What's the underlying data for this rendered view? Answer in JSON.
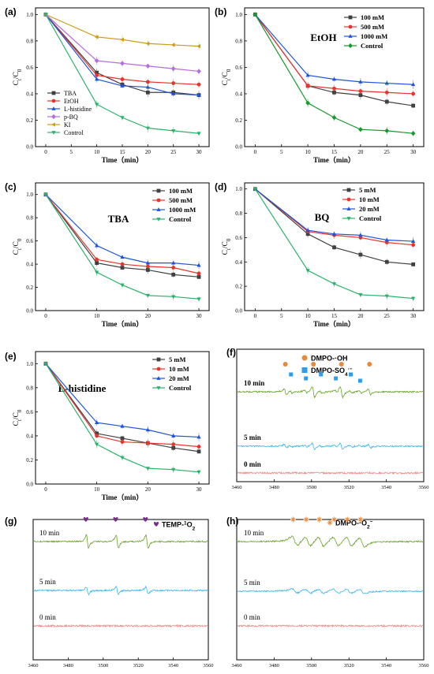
{
  "chart_data": [
    {
      "type": "line",
      "panel": "(a)",
      "title": "",
      "xlabel": "Time（min）",
      "ylabel": "C",
      "ylabel_sub1": "t",
      "ylabel_mid": "/C",
      "ylabel_sub2": "0",
      "xlim": [
        -2,
        32
      ],
      "ylim": [
        0,
        1.05
      ],
      "xticks": [
        0,
        5,
        10,
        15,
        20,
        25,
        30
      ],
      "yticks": [
        0.0,
        0.2,
        0.4,
        0.6,
        0.8,
        1.0
      ],
      "ytick_labels": [
        "0.0",
        "0.2",
        "0.4",
        "0.6",
        "0.8",
        "1.0"
      ],
      "legend_position": "bottom-left",
      "legend_style": "normal",
      "x": [
        0,
        10,
        15,
        20,
        25,
        30
      ],
      "series": [
        {
          "name": "TBA",
          "values": [
            1.0,
            0.56,
            0.47,
            0.41,
            0.41,
            0.39
          ],
          "color": "#404040",
          "marker": "square"
        },
        {
          "name": "EtOH",
          "values": [
            1.0,
            0.54,
            0.51,
            0.49,
            0.48,
            0.47
          ],
          "color": "#e8342a",
          "marker": "circle"
        },
        {
          "name": "L-histidine",
          "values": [
            1.0,
            0.51,
            0.46,
            0.45,
            0.4,
            0.39
          ],
          "color": "#1d55d6",
          "marker": "triangle"
        },
        {
          "name": "p-BQ",
          "values": [
            1.0,
            0.65,
            0.63,
            0.61,
            0.59,
            0.57
          ],
          "color": "#b76ce0",
          "marker": "diamond"
        },
        {
          "name": "KI",
          "values": [
            1.0,
            0.83,
            0.81,
            0.78,
            0.77,
            0.76
          ],
          "color": "#cf9a16",
          "marker": "triangle-left"
        },
        {
          "name": "Control",
          "values": [
            1.0,
            0.32,
            0.22,
            0.14,
            0.12,
            0.1
          ],
          "color": "#2bb36b",
          "marker": "triangle-down"
        }
      ]
    },
    {
      "type": "line",
      "panel": "(b)",
      "title": "EtOH",
      "xlabel": "Time（min）",
      "ylabel": "C",
      "ylabel_sub1": "t",
      "ylabel_mid": "/C",
      "ylabel_sub2": "0",
      "xlim": [
        -2,
        32
      ],
      "ylim": [
        0,
        1.05
      ],
      "xticks": [
        0,
        5,
        10,
        15,
        20,
        25,
        30
      ],
      "yticks": [
        0.0,
        0.2,
        0.4,
        0.6,
        0.8,
        1.0
      ],
      "ytick_labels": [
        "0.0",
        "0.2",
        "0.4",
        "0.6",
        "0.8",
        "1.0"
      ],
      "legend_position": "top-right",
      "legend_style": "bold",
      "x": [
        0,
        10,
        15,
        20,
        25,
        30
      ],
      "series": [
        {
          "name": "100 mM",
          "values": [
            1.0,
            0.46,
            0.41,
            0.39,
            0.34,
            0.31
          ],
          "color": "#404040",
          "marker": "square"
        },
        {
          "name": "500 mM",
          "values": [
            1.0,
            0.46,
            0.44,
            0.42,
            0.41,
            0.4
          ],
          "color": "#e8342a",
          "marker": "circle"
        },
        {
          "name": "1000 mM",
          "values": [
            1.0,
            0.54,
            0.51,
            0.49,
            0.48,
            0.47
          ],
          "color": "#1d55d6",
          "marker": "triangle"
        },
        {
          "name": "Control",
          "values": [
            1.0,
            0.33,
            0.22,
            0.13,
            0.12,
            0.1
          ],
          "color": "#169a2d",
          "marker": "diamond"
        }
      ]
    },
    {
      "type": "line",
      "panel": "(c)",
      "title": "TBA",
      "xlabel": "Time（min）",
      "ylabel": "C",
      "ylabel_sub1": "t",
      "ylabel_mid": "/C",
      "ylabel_sub2": "0",
      "xlim": [
        -2,
        32
      ],
      "ylim": [
        0,
        1.1
      ],
      "xticks": [
        0,
        10,
        20,
        30
      ],
      "yticks": [
        0.0,
        0.2,
        0.4,
        0.6,
        0.8,
        1.0
      ],
      "ytick_labels": [
        "0.0",
        "0.2",
        "0.4",
        "0.6",
        "0.8",
        "1.0"
      ],
      "legend_position": "top-right",
      "legend_style": "bold",
      "x": [
        0,
        10,
        15,
        20,
        25,
        30
      ],
      "series": [
        {
          "name": "100 mM",
          "values": [
            1.0,
            0.41,
            0.37,
            0.35,
            0.31,
            0.29
          ],
          "color": "#404040",
          "marker": "square"
        },
        {
          "name": "500 mM",
          "values": [
            1.0,
            0.44,
            0.4,
            0.38,
            0.37,
            0.32
          ],
          "color": "#e8342a",
          "marker": "circle"
        },
        {
          "name": "1000 mM",
          "values": [
            1.0,
            0.56,
            0.46,
            0.41,
            0.41,
            0.39
          ],
          "color": "#1d55d6",
          "marker": "triangle"
        },
        {
          "name": "Control",
          "values": [
            1.0,
            0.33,
            0.22,
            0.13,
            0.12,
            0.1
          ],
          "color": "#2bb36b",
          "marker": "triangle-down"
        }
      ]
    },
    {
      "type": "line",
      "panel": "(d)",
      "title": "BQ",
      "xlabel": "Time（min）",
      "ylabel": "C",
      "ylabel_sub1": "t",
      "ylabel_mid": "/C",
      "ylabel_sub2": "0",
      "xlim": [
        -2,
        32
      ],
      "ylim": [
        0,
        1.05
      ],
      "xticks": [
        0,
        5,
        10,
        15,
        20,
        25,
        30
      ],
      "yticks": [
        0.0,
        0.2,
        0.4,
        0.6,
        0.8,
        1.0
      ],
      "ytick_labels": [
        "0.0",
        "0.2",
        "0.4",
        "0.6",
        "0.8",
        "1.0"
      ],
      "legend_position": "top-right",
      "legend_style": "bold",
      "x": [
        0,
        10,
        15,
        20,
        25,
        30
      ],
      "series": [
        {
          "name": "5 mM",
          "values": [
            1.0,
            0.63,
            0.52,
            0.46,
            0.4,
            0.38
          ],
          "color": "#404040",
          "marker": "square"
        },
        {
          "name": "10 mM",
          "values": [
            1.0,
            0.65,
            0.62,
            0.6,
            0.56,
            0.54
          ],
          "color": "#e8342a",
          "marker": "circle"
        },
        {
          "name": "20 mM",
          "values": [
            1.0,
            0.66,
            0.63,
            0.62,
            0.58,
            0.57
          ],
          "color": "#1d55d6",
          "marker": "triangle"
        },
        {
          "name": "Control",
          "values": [
            1.0,
            0.33,
            0.22,
            0.13,
            0.12,
            0.1
          ],
          "color": "#2bb36b",
          "marker": "triangle-down"
        }
      ]
    },
    {
      "type": "line",
      "panel": "(e)",
      "title": "L-histidine",
      "xlabel": "Time（min）",
      "ylabel": "C",
      "ylabel_sub1": "t",
      "ylabel_mid": "/C",
      "ylabel_sub2": "0",
      "xlim": [
        -2,
        32
      ],
      "ylim": [
        0,
        1.1
      ],
      "xticks": [
        0,
        10,
        20,
        30
      ],
      "yticks": [
        0.0,
        0.2,
        0.4,
        0.6,
        0.8,
        1.0
      ],
      "ytick_labels": [
        "0.0",
        "0.2",
        "0.4",
        "0.6",
        "0.8",
        "1.0"
      ],
      "legend_position": "top-right",
      "legend_style": "bold",
      "x": [
        0,
        10,
        15,
        20,
        25,
        30
      ],
      "series": [
        {
          "name": "5 mM",
          "values": [
            1.0,
            0.42,
            0.38,
            0.34,
            0.3,
            0.27
          ],
          "color": "#404040",
          "marker": "square"
        },
        {
          "name": "10 mM",
          "values": [
            1.0,
            0.4,
            0.35,
            0.34,
            0.33,
            0.31
          ],
          "color": "#e8342a",
          "marker": "circle"
        },
        {
          "name": "20 mM",
          "values": [
            1.0,
            0.51,
            0.48,
            0.45,
            0.4,
            0.39
          ],
          "color": "#1d55d6",
          "marker": "triangle"
        },
        {
          "name": "Control",
          "values": [
            1.0,
            0.33,
            0.22,
            0.13,
            0.12,
            0.1
          ],
          "color": "#2bb36b",
          "marker": "triangle-down"
        }
      ]
    },
    {
      "type": "line",
      "panel": "(f)",
      "title": "",
      "xlim": [
        3460,
        3560
      ],
      "xticks": [
        3460,
        3480,
        3500,
        3520,
        3540,
        3560
      ],
      "legend": [
        {
          "name": "DMPO-·OH",
          "color": "#e8893a",
          "marker": "circle"
        },
        {
          "name": "DMPO-SO",
          "sub": "4",
          "sup": "·−",
          "color": "#2d9bf0",
          "marker": "square"
        }
      ],
      "spectra": [
        {
          "name": "10 min",
          "color": "#6aa42a",
          "pattern": "oh-so4",
          "amplitude": 1.0
        },
        {
          "name": "5 min",
          "color": "#3fb8ec",
          "pattern": "oh-so4",
          "amplitude": 0.55
        },
        {
          "name": "0 min",
          "color": "#f08888",
          "pattern": "noise",
          "amplitude": 0.0
        }
      ],
      "peaks_oh": [
        3486,
        3501,
        3516,
        3531
      ],
      "peaks_so4": [
        3489,
        3497,
        3505,
        3513,
        3521,
        3526
      ]
    },
    {
      "type": "line",
      "panel": "(g)",
      "title": "",
      "xlim": [
        3460,
        3560
      ],
      "xticks": [
        3460,
        3480,
        3500,
        3520,
        3540,
        3560
      ],
      "legend": [
        {
          "name": "TEMP-",
          "sup": "1",
          "tail": "O",
          "sub": "2",
          "color": "#7a2d8f",
          "marker": "heart"
        }
      ],
      "spectra": [
        {
          "name": "10 min",
          "color": "#6aa42a",
          "pattern": "triplet",
          "amplitude": 1.0
        },
        {
          "name": "5 min",
          "color": "#3fb8ec",
          "pattern": "triplet",
          "amplitude": 0.55
        },
        {
          "name": "0 min",
          "color": "#f08888",
          "pattern": "noise",
          "amplitude": 0.0
        }
      ],
      "peaks": [
        3491,
        3508,
        3525
      ]
    },
    {
      "type": "line",
      "panel": "(h)",
      "title": "",
      "xlim": [
        3460,
        3560
      ],
      "xticks": [
        3460,
        3480,
        3500,
        3520,
        3540,
        3560
      ],
      "legend": [
        {
          "name": "DMPO-·O",
          "sub": "2",
          "sup": "−",
          "color": "#e8893a",
          "marker": "star"
        }
      ],
      "spectra": [
        {
          "name": "10 min",
          "color": "#6aa42a",
          "pattern": "sextet",
          "amplitude": 1.0
        },
        {
          "name": "5 min",
          "color": "#3fb8ec",
          "pattern": "sextet",
          "amplitude": 0.45
        },
        {
          "name": "0 min",
          "color": "#f08888",
          "pattern": "noise",
          "amplitude": 0.0
        }
      ],
      "peaks": [
        3491,
        3498,
        3505,
        3513,
        3520,
        3527
      ]
    }
  ]
}
